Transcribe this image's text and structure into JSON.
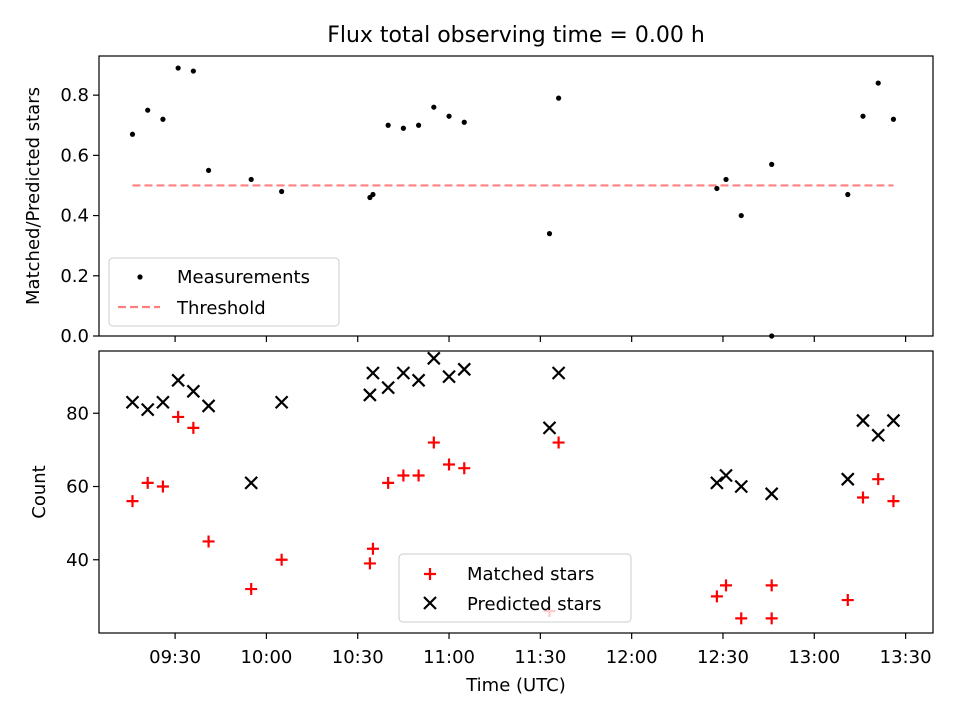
{
  "chart_data": [
    {
      "type": "scatter",
      "title": "Flux total observing time = 0.00 h",
      "xlabel": "",
      "ylabel": "Matched/Predicted stars",
      "ylim": [
        0,
        0.93
      ],
      "yticks": [
        "0.0",
        "0.2",
        "0.4",
        "0.6",
        "0.8"
      ],
      "grid": false,
      "legend": "lower-left",
      "threshold": {
        "name": "Threshold",
        "value": 0.5,
        "x_range": [
          "09:16",
          "13:26"
        ],
        "color": "#ff7f7f",
        "style": "dashed"
      },
      "series": [
        {
          "name": "Measurements",
          "color": "#000000",
          "marker": "dot",
          "x": [
            "09:16",
            "09:21",
            "09:26",
            "09:31",
            "09:36",
            "09:41",
            "09:55",
            "10:05",
            "10:34",
            "10:35",
            "10:40",
            "10:45",
            "10:50",
            "10:55",
            "11:00",
            "11:05",
            "11:33",
            "11:36",
            "12:28",
            "12:31",
            "12:36",
            "12:46",
            "12:46",
            "13:11",
            "13:16",
            "13:21",
            "13:26"
          ],
          "y": [
            0.67,
            0.75,
            0.72,
            0.89,
            0.88,
            0.55,
            0.52,
            0.48,
            0.46,
            0.47,
            0.7,
            0.69,
            0.7,
            0.76,
            0.73,
            0.71,
            0.34,
            0.79,
            0.49,
            0.52,
            0.4,
            0.0,
            0.57,
            0.47,
            0.73,
            0.84,
            0.72
          ]
        }
      ]
    },
    {
      "type": "scatter",
      "title": "",
      "xlabel": "Time (UTC)",
      "ylabel": "Count",
      "ylim": [
        20,
        97
      ],
      "yticks": [
        "40",
        "60",
        "80"
      ],
      "xlim": [
        "09:05",
        "13:39"
      ],
      "xticks": [
        "09:30",
        "10:00",
        "10:30",
        "11:00",
        "11:30",
        "12:00",
        "12:30",
        "13:00",
        "13:30"
      ],
      "grid": false,
      "legend": "bottom-center",
      "series": [
        {
          "name": "Matched stars",
          "color": "#ff0000",
          "marker": "plus",
          "x": [
            "09:16",
            "09:21",
            "09:26",
            "09:31",
            "09:36",
            "09:41",
            "09:55",
            "10:05",
            "10:34",
            "10:35",
            "10:40",
            "10:45",
            "10:50",
            "10:55",
            "11:00",
            "11:05",
            "11:33",
            "11:36",
            "12:28",
            "12:31",
            "12:36",
            "12:46",
            "12:46",
            "13:11",
            "13:16",
            "13:21",
            "13:26"
          ],
          "y": [
            56,
            61,
            60,
            79,
            76,
            45,
            32,
            40,
            39,
            43,
            61,
            63,
            63,
            72,
            66,
            65,
            26,
            72,
            30,
            33,
            24,
            24,
            33,
            29,
            57,
            62,
            56
          ]
        },
        {
          "name": "Predicted stars",
          "color": "#000000",
          "marker": "x",
          "x": [
            "09:16",
            "09:21",
            "09:26",
            "09:31",
            "09:36",
            "09:41",
            "09:55",
            "10:05",
            "10:34",
            "10:35",
            "10:40",
            "10:45",
            "10:50",
            "10:55",
            "11:00",
            "11:05",
            "11:33",
            "11:36",
            "12:28",
            "12:31",
            "12:36",
            "12:46",
            "13:11",
            "13:16",
            "13:21",
            "13:26"
          ],
          "y": [
            83,
            81,
            83,
            89,
            86,
            82,
            61,
            83,
            85,
            91,
            87,
            91,
            89,
            95,
            90,
            92,
            76,
            91,
            61,
            63,
            60,
            58,
            62,
            78,
            74,
            78
          ]
        }
      ]
    }
  ]
}
